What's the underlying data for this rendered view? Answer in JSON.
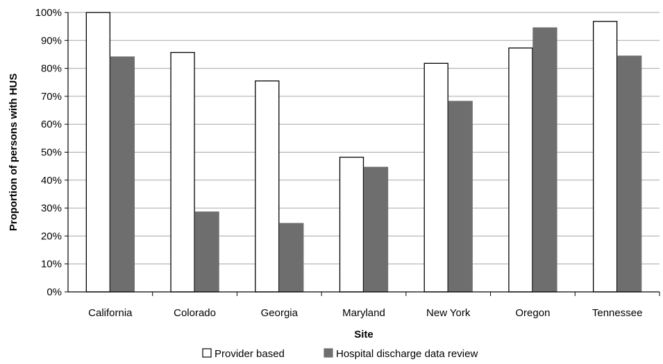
{
  "chart_data": {
    "type": "bar",
    "title": "",
    "xlabel": "Site",
    "ylabel": "Proportion of persons with HUS",
    "categories": [
      "California",
      "Colorado",
      "Georgia",
      "Maryland",
      "New York",
      "Oregon",
      "Tennessee"
    ],
    "series": [
      {
        "name": "Provider based",
        "values": [
          100,
          85.7,
          75.5,
          48.2,
          81.8,
          87.3,
          96.8
        ],
        "color": "#ffffff",
        "stroke": "#000000"
      },
      {
        "name": "Hospital discharge data review",
        "values": [
          84.1,
          28.6,
          24.5,
          44.6,
          68.2,
          94.5,
          84.4
        ],
        "color": "#6e6e6e",
        "stroke": "#6e6e6e"
      }
    ],
    "ylim": [
      0,
      100
    ],
    "yticks": [
      "0%",
      "10%",
      "20%",
      "30%",
      "40%",
      "50%",
      "60%",
      "70%",
      "80%",
      "90%",
      "100%"
    ],
    "grid": true,
    "legend_position": "bottom-center"
  }
}
